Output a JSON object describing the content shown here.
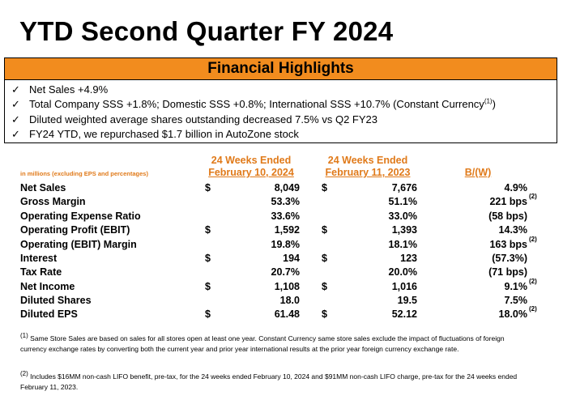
{
  "title": "YTD Second Quarter FY 2024",
  "highlights": {
    "heading": "Financial Highlights",
    "bullets": [
      {
        "text": "Net Sales +4.9%",
        "sup": ""
      },
      {
        "text": "Total Company SSS +1.8%; Domestic SSS +0.8%; International SSS +10.7% (Constant Currency",
        "sup": "(1)",
        "after": ")"
      },
      {
        "text": "Diluted weighted average shares outstanding decreased 7.5% vs Q2 FY23",
        "sup": ""
      },
      {
        "text": "FY24 YTD, we repurchased $1.7 billion in AutoZone stock",
        "sup": ""
      }
    ]
  },
  "table": {
    "note": "in millions (excluding EPS and percentages)",
    "col1": {
      "line1": "24 Weeks Ended",
      "line2": "February 10, 2024"
    },
    "col2": {
      "line1": "24 Weeks Ended",
      "line2": "February 11, 2023"
    },
    "col3": "B/(W)",
    "rows": [
      {
        "label": "Net Sales",
        "d1": "$",
        "v1": "8,049",
        "d2": "$",
        "v2": "7,676",
        "v3": "4.9%",
        "sup": ""
      },
      {
        "label": "Gross Margin",
        "d1": "",
        "v1": "53.3%",
        "d2": "",
        "v2": "51.1%",
        "v3": "221 bps",
        "sup": "(2)"
      },
      {
        "label": "Operating Expense Ratio",
        "d1": "",
        "v1": "33.6%",
        "d2": "",
        "v2": "33.0%",
        "v3": "(58 bps)",
        "sup": ""
      },
      {
        "label": "Operating Profit (EBIT)",
        "d1": "$",
        "v1": "1,592",
        "d2": "$",
        "v2": "1,393",
        "v3": "14.3%",
        "sup": ""
      },
      {
        "label": "Operating (EBIT) Margin",
        "d1": "",
        "v1": "19.8%",
        "d2": "",
        "v2": "18.1%",
        "v3": "163 bps",
        "sup": "(2)"
      },
      {
        "label": "Interest",
        "d1": "$",
        "v1": "194",
        "d2": "$",
        "v2": "123",
        "v3": "(57.3%)",
        "sup": ""
      },
      {
        "label": "Tax Rate",
        "d1": "",
        "v1": "20.7%",
        "d2": "",
        "v2": "20.0%",
        "v3": "(71 bps)",
        "sup": ""
      },
      {
        "label": "Net Income",
        "d1": "$",
        "v1": "1,108",
        "d2": "$",
        "v2": "1,016",
        "v3": "9.1%",
        "sup": "(2)"
      },
      {
        "label": "Diluted Shares",
        "d1": "",
        "v1": "18.0",
        "d2": "",
        "v2": "19.5",
        "v3": "7.5%",
        "sup": ""
      },
      {
        "label": "Diluted EPS",
        "d1": "$",
        "v1": "61.48",
        "d2": "$",
        "v2": "52.12",
        "v3": "18.0%",
        "sup": "(2)"
      }
    ]
  },
  "footnotes": [
    {
      "mark": "(1)",
      "text": "Same Store Sales are based on sales for all stores open at least one year. Constant Currency same store sales exclude the impact of fluctuations of foreign currency exchange rates by converting both the current year and prior year international results at the prior year foreign currency exchange rate."
    },
    {
      "mark": "(2)",
      "text": "Includes $16MM non-cash LIFO benefit, pre-tax, for the 24 weeks ended February 10, 2024 and $91MM non-cash LIFO charge, pre-tax for the 24 weeks ended February 11, 2023."
    }
  ]
}
